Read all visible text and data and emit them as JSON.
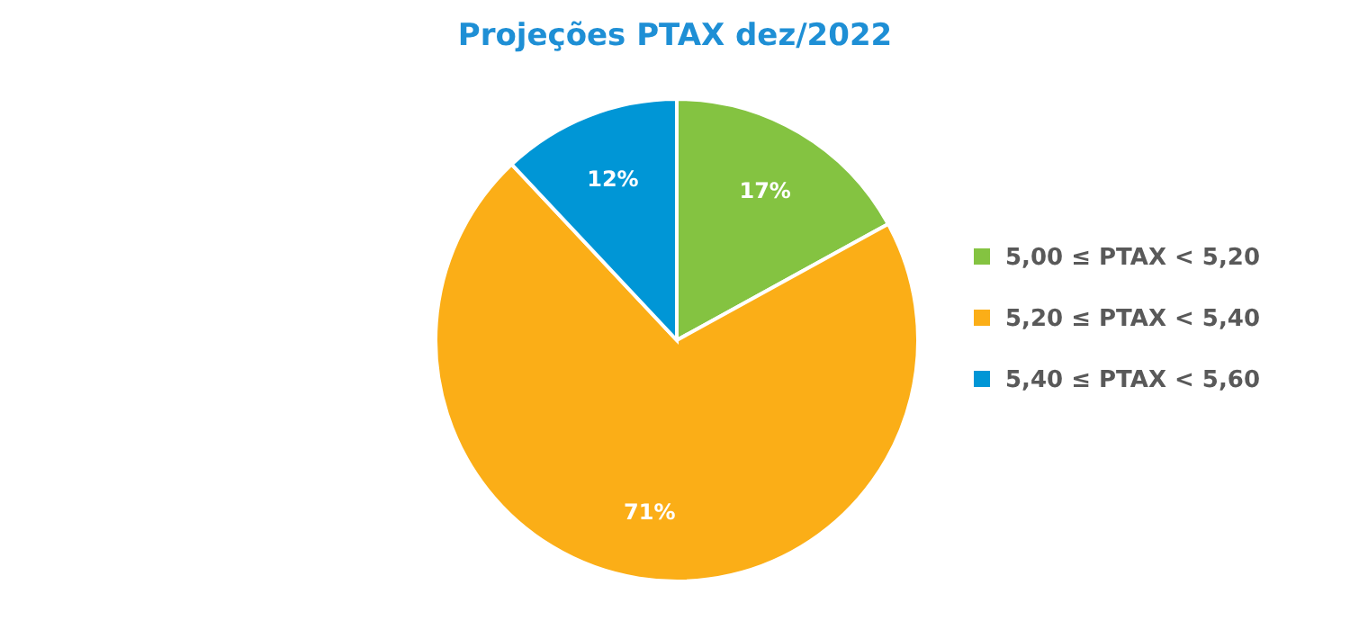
{
  "chart_data": {
    "type": "pie",
    "title": "Projeções PTAX dez/2022",
    "categories": [
      "5,00 ≤ PTAX < 5,20",
      "5,20 ≤ PTAX < 5,40",
      "5,40 ≤ PTAX < 5,60"
    ],
    "values": [
      17,
      71,
      12
    ],
    "colors": [
      "#84c341",
      "#fbae17",
      "#0096d6"
    ],
    "value_labels": [
      "17%",
      "71%",
      "12%"
    ],
    "legend": "right"
  }
}
